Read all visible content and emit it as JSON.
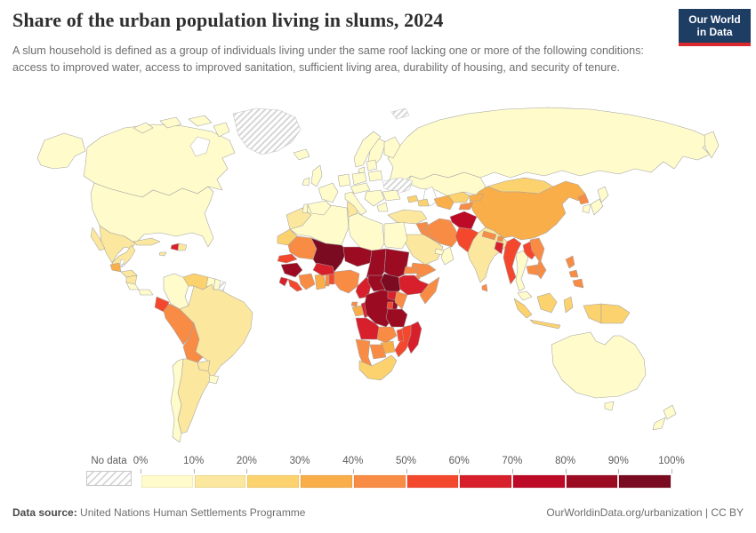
{
  "header": {
    "title": "Share of the urban population living in slums, 2024",
    "subtitle": "A slum household is defined as a group of individuals living under the same roof lacking one or more of the following conditions: access to improved water, access to improved sanitation, sufficient living area, durability of housing, and security of tenure.",
    "logo": {
      "line1": "Our World",
      "line2": "in Data",
      "bg_color": "#1d3d63",
      "accent_color": "#d8292f"
    }
  },
  "chart_data": {
    "type": "choropleth_map",
    "title": "Share of the urban population living in slums, 2024",
    "year": "2024",
    "unit": "%",
    "legend": {
      "no_data_label": "No data",
      "tick_labels": [
        "0%",
        "10%",
        "20%",
        "30%",
        "40%",
        "50%",
        "60%",
        "70%",
        "80%",
        "90%",
        "100%"
      ],
      "bin_edges": [
        0,
        10,
        20,
        30,
        40,
        50,
        60,
        70,
        80,
        90,
        100
      ],
      "bin_colors": [
        "#fffbcb",
        "#fce79e",
        "#fbd26e",
        "#f9ae4a",
        "#f98c45",
        "#f4482e",
        "#d7202b",
        "#bd0a26",
        "#9b0c23",
        "#7a0b20"
      ]
    },
    "regions": {
      "canada": 4,
      "united-states": 4,
      "greenland": null,
      "mexico": 15,
      "guatemala": 35,
      "belize": null,
      "honduras": 14,
      "nicaragua": 14,
      "costa-rica": 6,
      "panama": 8,
      "cuba": 14,
      "jamaica": 12,
      "haiti": 65,
      "dominican-republic": 14,
      "colombia": 8,
      "venezuela": 25,
      "guyana": 6,
      "suriname": 8,
      "french-guiana": null,
      "ecuador": 55,
      "peru": 45,
      "bolivia": 45,
      "brazil": 16,
      "paraguay": 14,
      "uruguay": 5,
      "argentina": 14,
      "chile": 5,
      "iceland": 3,
      "united-kingdom": 2,
      "ireland": 2,
      "norway": 2,
      "sweden": 2,
      "finland": 2,
      "denmark": 2,
      "france": 2,
      "spain": 2,
      "portugal": 2,
      "germany": 2,
      "poland": 2,
      "baltics": 3,
      "belarus": 3,
      "central-europe": 3,
      "romania": 6,
      "balkans": 6,
      "greece": 5,
      "italy": 3,
      "russia": 4,
      "ukraine": null,
      "svalbard": null,
      "kazakhstan": 5,
      "uzbekistan": 25,
      "turkmenistan": 35,
      "kyrgyzstan": 35,
      "tajikistan": 45,
      "georgia": 25,
      "azerbaijan": 25,
      "turkey": 13,
      "syria": 45,
      "iraq": 45,
      "iran": 45,
      "afghanistan": 75,
      "pakistan": 55,
      "saudi-arabia": 15,
      "yemen": 45,
      "oman": 6,
      "united-arab-emirates": 6,
      "india": 17,
      "nepal": 45,
      "bhutan": 42,
      "bangladesh": 62,
      "sri-lanka": 42,
      "china": 33,
      "mongolia": 25,
      "north-korea": 42,
      "south-korea": 3,
      "japan": 3,
      "myanmar": 57,
      "thailand": 6,
      "laos": 55,
      "vietnam": 44,
      "cambodia": 44,
      "malaysia": 6,
      "indonesia": 22,
      "philippines": 42,
      "papua-new-guinea": 27,
      "australia": 3,
      "new-zealand": 3,
      "morocco": 13,
      "algeria": 9,
      "tunisia": 11,
      "libya": 9,
      "egypt": 6,
      "western-sahara": 28,
      "mauritania": 46,
      "senegal": 52,
      "guinea": 84,
      "sierra-leone": 64,
      "liberia": 55,
      "cote-divoire": 46,
      "ghana": 34,
      "togo": 48,
      "benin": 52,
      "burkina-faso": 64,
      "mali": 94,
      "niger": 84,
      "nigeria": 46,
      "chad": 85,
      "cameroon": 62,
      "central-african-republic": 88,
      "sudan": 85,
      "south-sudan": 94,
      "eritrea": 45,
      "djibouti": 44,
      "ethiopia": 64,
      "somalia": 46,
      "kenya": 46,
      "uganda": 62,
      "rwanda-burundi": 55,
      "dr-congo": 85,
      "congo": 62,
      "gabon": 35,
      "equatorial-guinea": 44,
      "tanzania": 84,
      "angola": 64,
      "zambia": 46,
      "malawi": 55,
      "mozambique": 56,
      "zimbabwe": 34,
      "botswana": 45,
      "namibia": 45,
      "south-africa": 25,
      "madagascar": 65
    }
  },
  "footer": {
    "source_label": "Data source:",
    "source_value": " United Nations Human Settlements Programme",
    "link_text": "OurWorldinData.org/urbanization | CC BY"
  }
}
